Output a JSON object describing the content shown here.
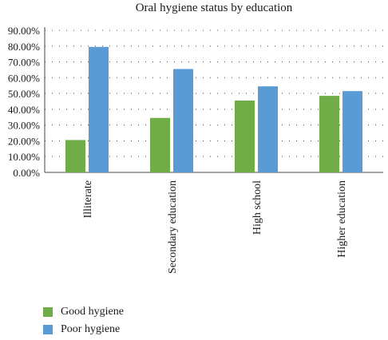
{
  "chart_data": {
    "type": "bar",
    "title": "Oral hygiene status by education",
    "xlabel": "",
    "ylabel": "",
    "categories": [
      "Illiterate",
      "Secondary education",
      "High school",
      "Higher education"
    ],
    "series": [
      {
        "name": "Good hygiene",
        "color": "#70ad47",
        "values": [
          20.5,
          34.5,
          45.5,
          48.5
        ]
      },
      {
        "name": "Poor hygiene",
        "color": "#5b9bd5",
        "values": [
          79.5,
          65.5,
          54.5,
          51.5
        ]
      }
    ],
    "ylim": [
      0,
      90
    ],
    "yticks": [
      "0.00%",
      "10.00%",
      "20.00%",
      "30.00%",
      "40.00%",
      "50.00%",
      "60.00%",
      "70.00%",
      "80.00%",
      "90.00%"
    ],
    "grid": "dotted horizontal",
    "legend_position": "bottom-left"
  }
}
